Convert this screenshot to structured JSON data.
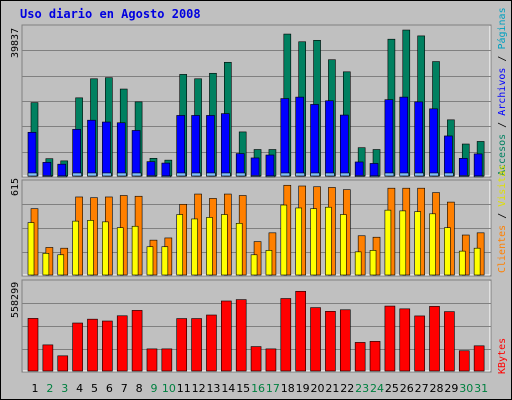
{
  "title": "Uso diario en Agosto 2008",
  "colors": {
    "background": "#c0c0c0",
    "grid": "#808080",
    "title": "#0000e0",
    "weekday_label": "#000000",
    "weekend_label": "#008040",
    "visits_bar": "#80c0ff",
    "pages_bar": "#008060",
    "files_bar": "#0000ff",
    "hits_bar": "#ffff00",
    "visitors_bar": "#ff8000",
    "kbytes_bar": "#ff0000"
  },
  "chart_data": [
    {
      "type": "bar",
      "panel": "top",
      "y_max_label": "39837",
      "ylim": [
        0,
        39837
      ],
      "categories": [
        "1",
        "2",
        "3",
        "4",
        "5",
        "6",
        "7",
        "8",
        "9",
        "10",
        "11",
        "12",
        "13",
        "14",
        "15",
        "16",
        "17",
        "18",
        "19",
        "20",
        "21",
        "22",
        "23",
        "24",
        "25",
        "26",
        "27",
        "28",
        "29",
        "30",
        "31"
      ],
      "weekend": [
        false,
        true,
        true,
        false,
        false,
        false,
        false,
        false,
        true,
        true,
        false,
        false,
        false,
        false,
        false,
        true,
        true,
        false,
        false,
        false,
        false,
        false,
        true,
        true,
        false,
        false,
        false,
        false,
        false,
        true,
        true
      ],
      "series": [
        {
          "name": "Accesos",
          "values": [
            20300,
            5000,
            4400,
            21600,
            26800,
            27100,
            24000,
            20500,
            5100,
            4600,
            28000,
            26800,
            28300,
            31300,
            12300,
            7500,
            7500,
            39000,
            36900,
            37300,
            32000,
            28700,
            8000,
            7500,
            37600,
            40100,
            38500,
            31500,
            15600,
            9000,
            9700
          ]
        },
        {
          "name": "Archivos",
          "values": [
            12200,
            4000,
            3500,
            13000,
            15500,
            15000,
            14800,
            12700,
            4200,
            3800,
            16800,
            16800,
            16800,
            17300,
            6400,
            5200,
            6000,
            21400,
            21800,
            19800,
            20800,
            16900,
            4100,
            3700,
            21100,
            21800,
            20500,
            18600,
            11200,
            5100,
            6300
          ]
        },
        {
          "name": "Visitas",
          "values": [
            1100,
            400,
            300,
            1100,
            1100,
            1100,
            1100,
            1100,
            400,
            300,
            1100,
            1100,
            1100,
            1100,
            1100,
            400,
            300,
            1100,
            1100,
            1100,
            1100,
            1100,
            400,
            300,
            1100,
            1100,
            1100,
            1100,
            1100,
            400,
            300
          ]
        }
      ]
    },
    {
      "type": "bar",
      "panel": "middle",
      "y_max_label": "615",
      "ylim": [
        0,
        615
      ],
      "categories": [
        "1",
        "2",
        "3",
        "4",
        "5",
        "6",
        "7",
        "8",
        "9",
        "10",
        "11",
        "12",
        "13",
        "14",
        "15",
        "16",
        "17",
        "18",
        "19",
        "20",
        "21",
        "22",
        "23",
        "24",
        "25",
        "26",
        "27",
        "28",
        "29",
        "30",
        "31"
      ],
      "series": [
        {
          "name": "Clientes",
          "values": [
            460,
            195,
            190,
            540,
            535,
            540,
            550,
            545,
            245,
            260,
            490,
            560,
            530,
            560,
            550,
            235,
            295,
            620,
            615,
            610,
            605,
            590,
            275,
            265,
            600,
            600,
            600,
            570,
            505,
            280,
            295
          ]
        },
        {
          "name": "Visitas",
          "values": [
            365,
            155,
            145,
            375,
            380,
            370,
            330,
            340,
            200,
            200,
            420,
            390,
            400,
            420,
            360,
            145,
            175,
            485,
            465,
            460,
            470,
            420,
            165,
            175,
            450,
            445,
            440,
            425,
            330,
            170,
            190
          ]
        }
      ]
    },
    {
      "type": "bar",
      "panel": "bottom",
      "y_max_label": "558299",
      "ylim": [
        0,
        558299
      ],
      "categories": [
        "1",
        "2",
        "3",
        "4",
        "5",
        "6",
        "7",
        "8",
        "9",
        "10",
        "11",
        "12",
        "13",
        "14",
        "15",
        "16",
        "17",
        "18",
        "19",
        "20",
        "21",
        "22",
        "23",
        "24",
        "25",
        "26",
        "27",
        "28",
        "29",
        "30",
        "31"
      ],
      "series": [
        {
          "name": "KBytes",
          "values": [
            348000,
            176000,
            105000,
            318000,
            343000,
            331000,
            365000,
            400000,
            150000,
            150000,
            347000,
            347000,
            370000,
            461000,
            470000,
            165000,
            150000,
            477000,
            524000,
            418000,
            394000,
            404000,
            192000,
            199000,
            428000,
            410000,
            364000,
            426000,
            392000,
            138000,
            170000
          ]
        }
      ]
    }
  ],
  "right_labels": {
    "top": [
      {
        "text": "Accesos",
        "color": "#008060"
      },
      {
        "text": " / ",
        "color": "#000000"
      },
      {
        "text": "Archivos",
        "color": "#0000ff"
      },
      {
        "text": " / ",
        "color": "#000000"
      },
      {
        "text": "Páginas",
        "color": "#00a0c0"
      }
    ],
    "middle": [
      {
        "text": "Clientes",
        "color": "#ff8000"
      },
      {
        "text": " / ",
        "color": "#000000"
      },
      {
        "text": "Visitas",
        "color": "#e0e000"
      }
    ],
    "bottom": [
      {
        "text": "KBytes",
        "color": "#ff0000"
      }
    ]
  }
}
